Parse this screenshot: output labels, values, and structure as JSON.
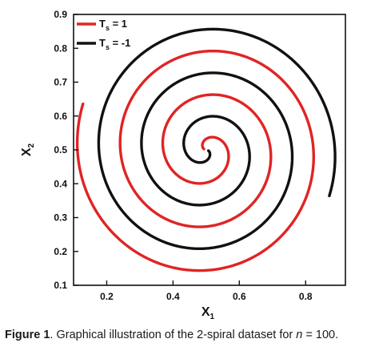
{
  "chart_data": {
    "type": "line",
    "xlabel": {
      "main": "X",
      "sub": "1"
    },
    "ylabel": {
      "main": "X",
      "sub": "2"
    },
    "xlim": [
      0.1,
      0.92
    ],
    "ylim": [
      0.1,
      0.9
    ],
    "x_ticks": [
      {
        "value": 0.2,
        "label": "0.2"
      },
      {
        "value": 0.4,
        "label": "0.4"
      },
      {
        "value": 0.6,
        "label": "0.6"
      },
      {
        "value": 0.8,
        "label": "0.8"
      }
    ],
    "y_ticks": [
      {
        "value": 0.1,
        "label": "0.1"
      },
      {
        "value": 0.2,
        "label": "0.2"
      },
      {
        "value": 0.3,
        "label": "0.3"
      },
      {
        "value": 0.4,
        "label": "0.4"
      },
      {
        "value": 0.5,
        "label": "0.5"
      },
      {
        "value": 0.6,
        "label": "0.6"
      },
      {
        "value": 0.7,
        "label": "0.7"
      },
      {
        "value": 0.8,
        "label": "0.8"
      },
      {
        "value": 0.9,
        "label": "0.9"
      }
    ],
    "grid": false,
    "legend_position": "top-left",
    "series": [
      {
        "name_main": "T",
        "name_sub": "s",
        "name_tail": " = 1",
        "color": "#e02424",
        "center": [
          0.5,
          0.5
        ],
        "theta_start": 0.35,
        "theta_end": 19.2,
        "r_per_radian": 0.0206,
        "angle_offset": 0.0
      },
      {
        "name_main": "T",
        "name_sub": "s",
        "name_tail": " = -1",
        "color": "#111111",
        "center": [
          0.5,
          0.5
        ],
        "theta_start": 0.35,
        "theta_end": 19.2,
        "r_per_radian": 0.0206,
        "angle_offset": 3.14159
      }
    ]
  },
  "caption": {
    "label": "Figure 1",
    "text": ". Graphical illustration of the 2-spiral dataset for ",
    "variable": "n",
    "tail": " = 100."
  }
}
